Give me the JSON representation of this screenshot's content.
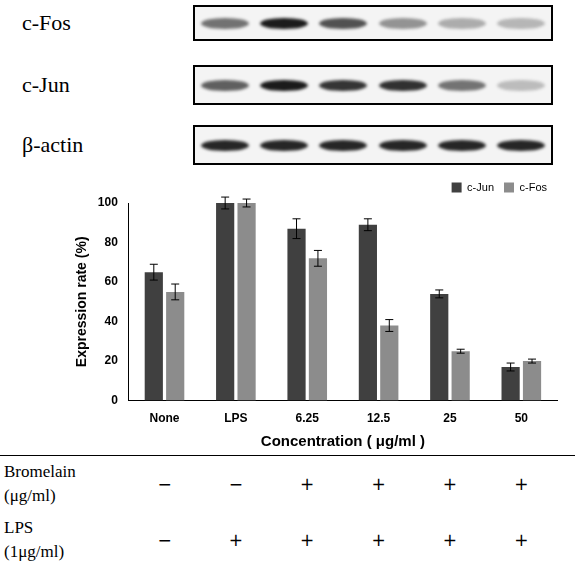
{
  "chart_data": {
    "type": "bar",
    "x_label": "Concentration ( μg/ml )",
    "y_label": "Expression rate (%)",
    "categories": [
      "None",
      "LPS",
      "6.25",
      "12.5",
      "25",
      "50"
    ],
    "series": [
      {
        "name": "c-Jun",
        "color": "#404040",
        "values": [
          65,
          100,
          87,
          89,
          54,
          17
        ],
        "errors": [
          4,
          3,
          5,
          3,
          2,
          2
        ]
      },
      {
        "name": "c-Fos",
        "color": "#8c8c8c",
        "values": [
          55,
          100,
          72,
          38,
          25,
          20
        ],
        "errors": [
          4,
          2,
          4,
          3,
          1,
          1
        ]
      }
    ],
    "ylim": [
      0,
      100
    ],
    "yticks": [
      0,
      20,
      40,
      60,
      80,
      100
    ],
    "grid": false,
    "legend": "upper right"
  },
  "blot": {
    "rows": [
      "c-Fos",
      "c-Jun",
      "β-actin"
    ]
  },
  "treatment_table": {
    "rows": [
      {
        "label": [
          "Bromelain",
          "(μg/ml)"
        ],
        "cells": [
          "−",
          "−",
          "+",
          "+",
          "+",
          "+"
        ]
      },
      {
        "label": [
          "LPS",
          "(1μg/ml)"
        ],
        "cells": [
          "−",
          "+",
          "+",
          "+",
          "+",
          "+"
        ]
      }
    ]
  }
}
